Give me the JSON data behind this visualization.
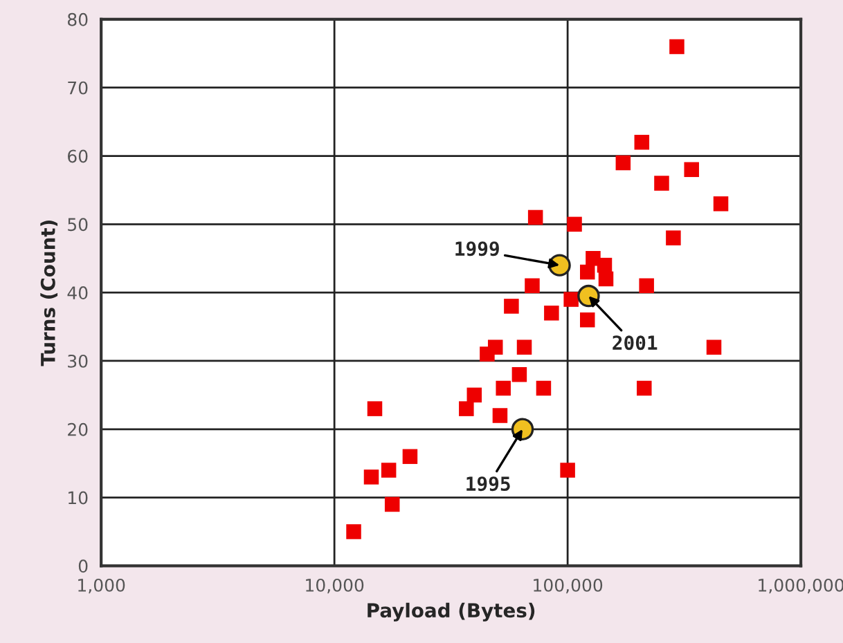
{
  "chart_data": {
    "type": "scatter",
    "xlabel": "Payload (Bytes)",
    "ylabel": "Turns (Count)",
    "log": "x",
    "xlim": [
      1000,
      1000000
    ],
    "xticks": [
      {
        "value": 1000,
        "label": "1,000"
      },
      {
        "value": 10000,
        "label": "10,000"
      },
      {
        "value": 100000,
        "label": "100,000"
      },
      {
        "value": 1000000,
        "label": "1,000,000"
      }
    ],
    "ylim": [
      0,
      80
    ],
    "yticks": [
      0,
      10,
      20,
      30,
      40,
      50,
      60,
      70,
      80
    ],
    "grid": true,
    "series": [
      {
        "color": "#ee0000",
        "marker": "square",
        "x": [
          12100,
          14900,
          14400,
          17100,
          17700,
          21100,
          36800,
          39800,
          45200,
          49000,
          51300,
          53000,
          57400,
          85300,
          103500,
          121600,
          65200,
          62100,
          78900,
          100000,
          213000,
          424000,
          294000,
          208000,
          173000,
          340000,
          253000,
          454000,
          72800,
          107000,
          284000,
          70500,
          128600,
          144000,
          146000,
          121600,
          218000
        ],
        "values": [
          5,
          23,
          13,
          14,
          9,
          16,
          23,
          25,
          31,
          32,
          22,
          26,
          38,
          37,
          39,
          36,
          32,
          28,
          26,
          14,
          26,
          32,
          76,
          62,
          59,
          58,
          56,
          53,
          51,
          50,
          48,
          41,
          45,
          44,
          42,
          43,
          41
        ]
      },
      {
        "color": "#f0c020",
        "marker": "circle",
        "x": [
          92400,
          123000,
          64100
        ],
        "values": [
          44,
          39.5,
          20
        ]
      }
    ],
    "annotations": [
      {
        "text": "1999",
        "x": 92400,
        "y": 44
      },
      {
        "text": "2001",
        "x": 123000,
        "y": 39.5
      },
      {
        "text": "1995",
        "x": 64100,
        "y": 20
      }
    ]
  }
}
